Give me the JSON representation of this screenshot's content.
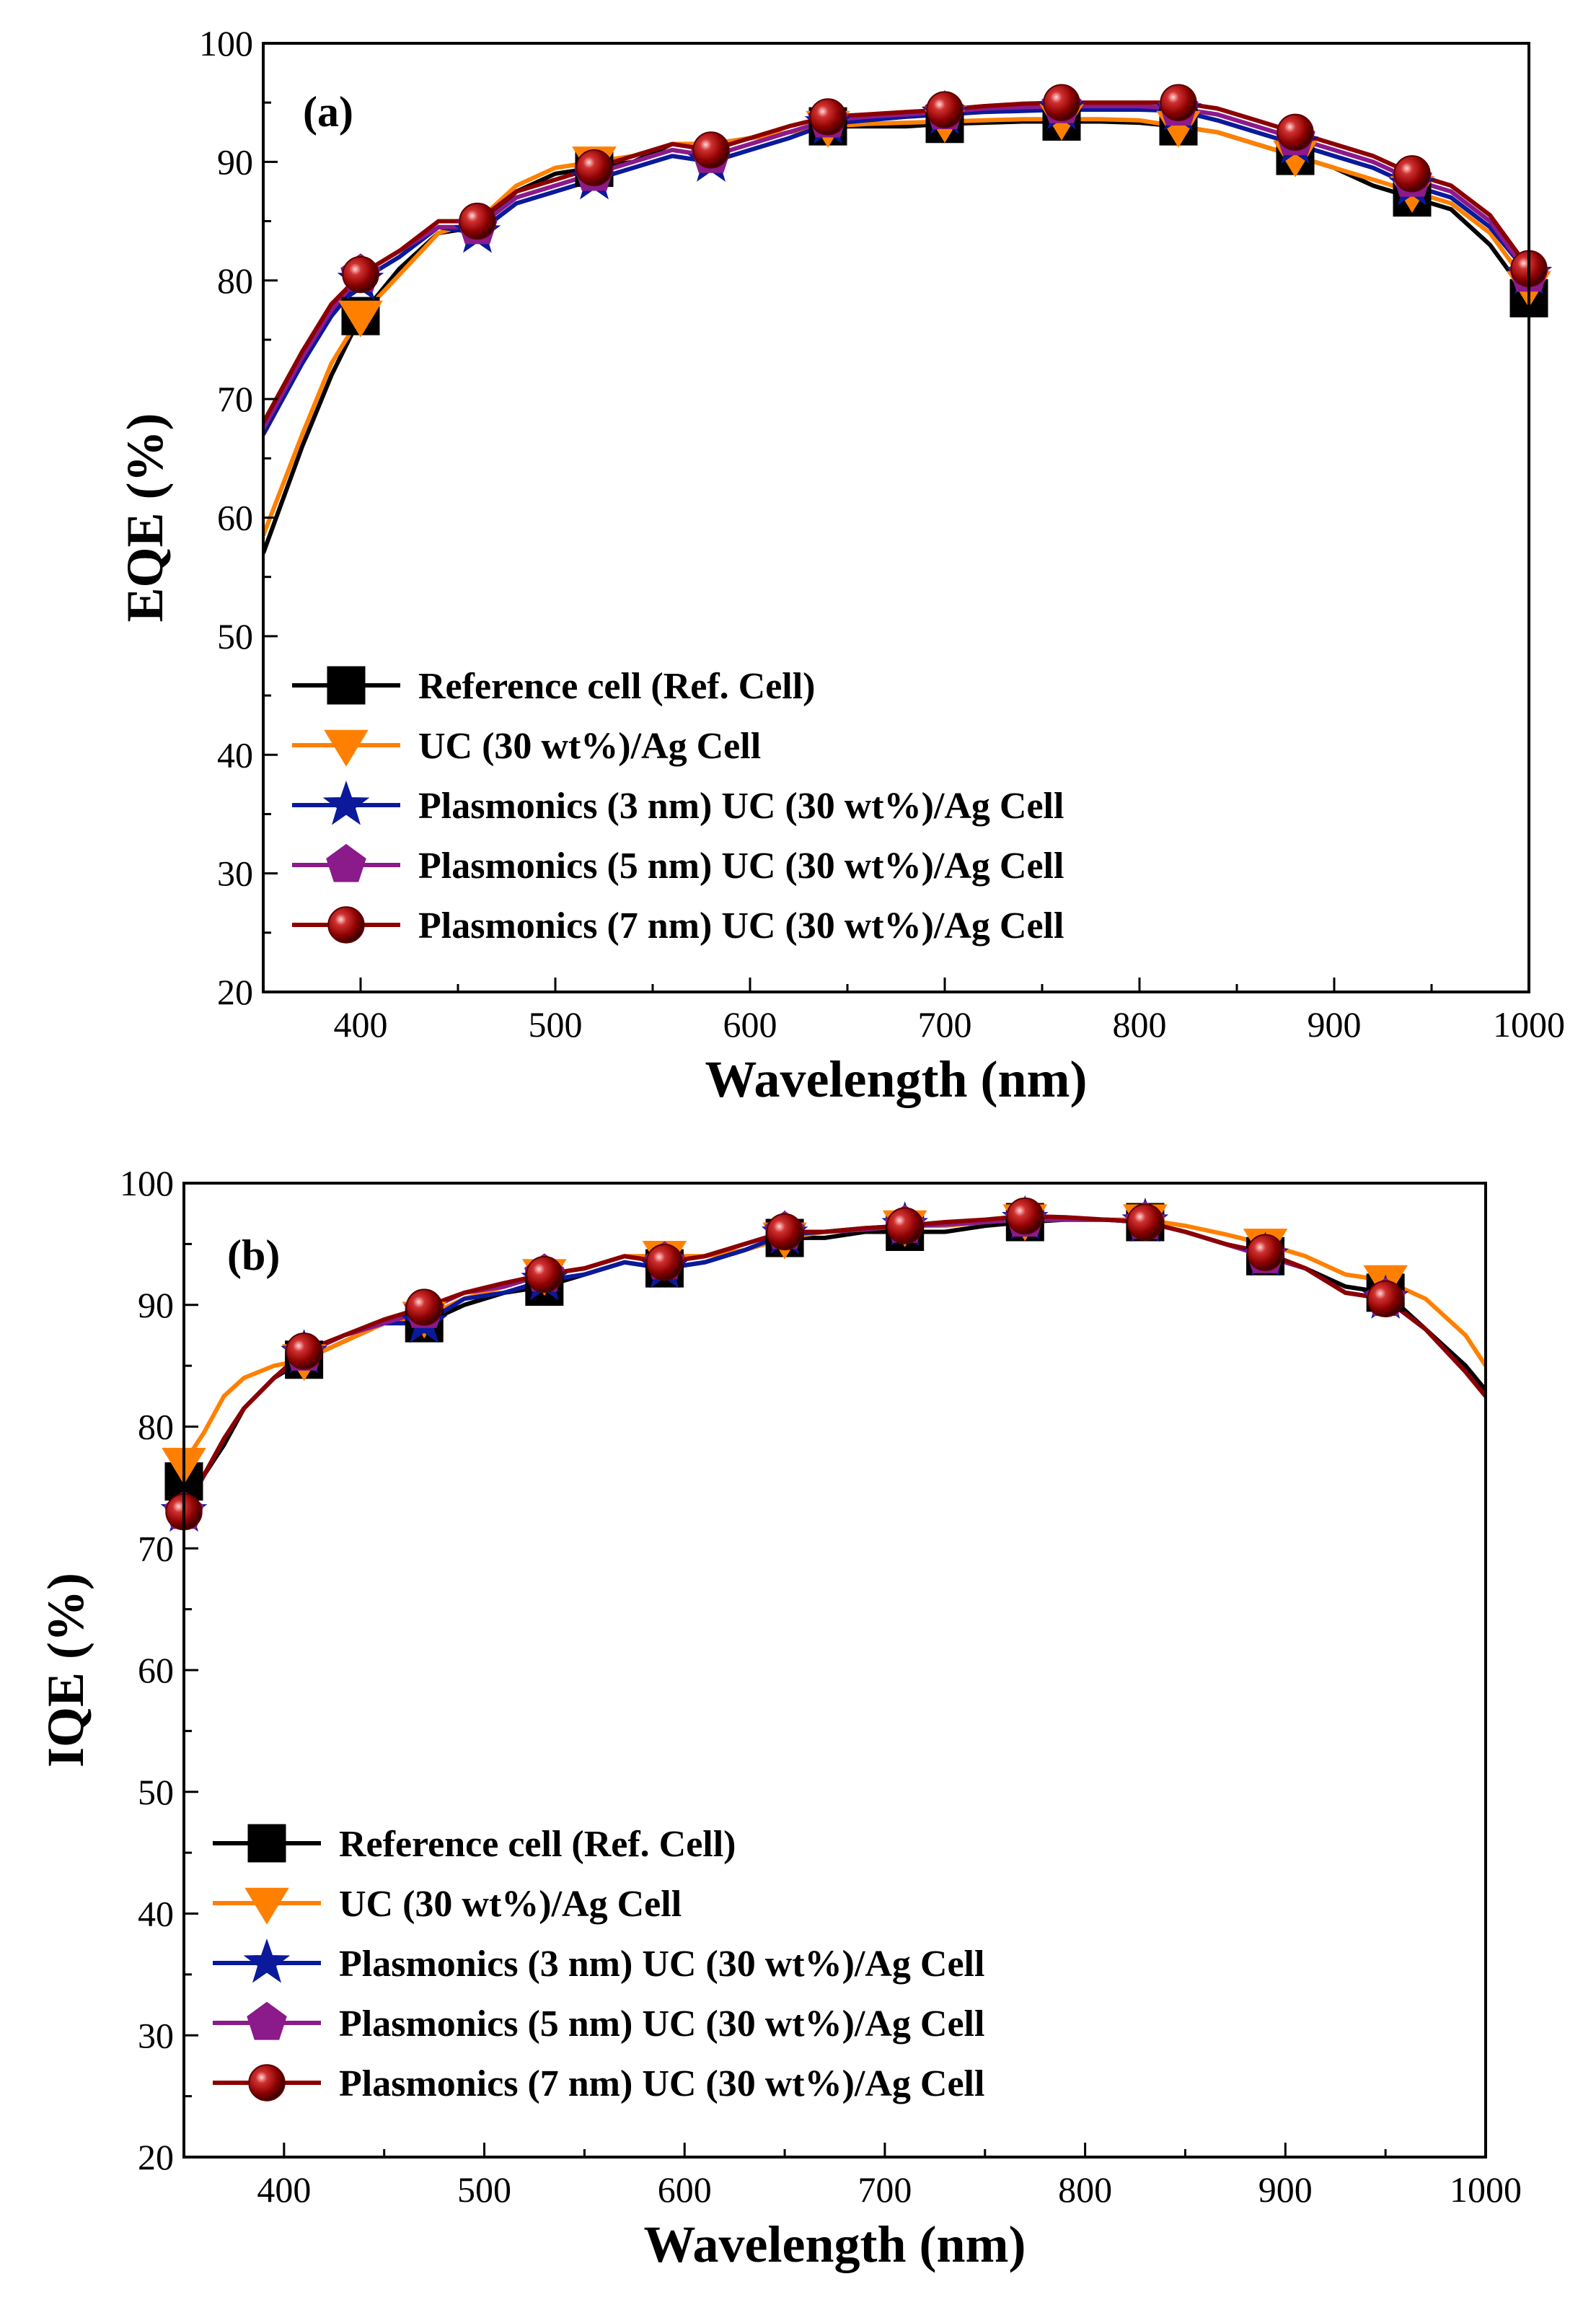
{
  "chart_data": [
    {
      "type": "line",
      "panel_label": "(a)",
      "xlabel": "Wavelength (nm)",
      "ylabel": "EQE (%)",
      "xlim": [
        350,
        1000
      ],
      "ylim": [
        20,
        100
      ],
      "xticks": [
        400,
        500,
        600,
        700,
        800,
        900,
        1000
      ],
      "yticks": [
        20,
        30,
        40,
        50,
        60,
        70,
        80,
        90,
        100
      ],
      "legend_position": "bottom-left",
      "series": [
        {
          "name": "Reference cell (Ref. Cell)",
          "color": "#000000",
          "marker": "square",
          "x": [
            350,
            370,
            385,
            400,
            420,
            440,
            460,
            480,
            500,
            520,
            540,
            560,
            580,
            600,
            620,
            640,
            660,
            680,
            700,
            720,
            740,
            760,
            780,
            800,
            820,
            840,
            860,
            880,
            900,
            920,
            940,
            960,
            980,
            1000
          ],
          "y": [
            57,
            66,
            72,
            77,
            81,
            84,
            84.5,
            87.5,
            89,
            89.5,
            90,
            91.5,
            91.5,
            92,
            92.5,
            93,
            93,
            93,
            93.2,
            93.3,
            93.4,
            93.4,
            93.4,
            93.3,
            93,
            92.5,
            91.5,
            90.5,
            89.5,
            88,
            87,
            86,
            83,
            78.5
          ],
          "marker_x": [
            400,
            520,
            640,
            700,
            760,
            820,
            880,
            940,
            1000
          ]
        },
        {
          "name": "UC (30 wt%)/Ag Cell",
          "color": "#ff8000",
          "marker": "triangle-down",
          "x": [
            350,
            370,
            385,
            400,
            420,
            440,
            460,
            480,
            500,
            520,
            540,
            560,
            580,
            600,
            620,
            640,
            660,
            680,
            700,
            720,
            740,
            760,
            780,
            800,
            820,
            840,
            860,
            880,
            900,
            920,
            940,
            960,
            980,
            1000
          ],
          "y": [
            58.5,
            67,
            73,
            77,
            80.5,
            84,
            85,
            88,
            89.5,
            90,
            90.5,
            91.5,
            91.5,
            92,
            92.5,
            93,
            93.2,
            93.3,
            93.4,
            93.5,
            93.6,
            93.6,
            93.6,
            93.5,
            93,
            92.5,
            91.5,
            90.5,
            89.5,
            88.5,
            87.5,
            86.5,
            84,
            79.5
          ],
          "marker_x": [
            400,
            520,
            640,
            700,
            760,
            820,
            880,
            940,
            1000
          ]
        },
        {
          "name": "Plasmonics (3 nm) UC (30 wt%)/Ag Cell",
          "color": "#0a1a9a",
          "marker": "star",
          "x": [
            350,
            370,
            385,
            400,
            420,
            440,
            460,
            480,
            500,
            520,
            540,
            560,
            580,
            600,
            620,
            640,
            660,
            680,
            700,
            720,
            740,
            760,
            780,
            800,
            820,
            840,
            860,
            880,
            900,
            920,
            940,
            960,
            980,
            1000
          ],
          "y": [
            67,
            73,
            77,
            80,
            82,
            84.5,
            84,
            86.5,
            87.5,
            88.5,
            89.5,
            90.5,
            90,
            91,
            92,
            93.2,
            93.5,
            93.8,
            94,
            94.2,
            94.3,
            94.4,
            94.4,
            94.4,
            94.3,
            93.5,
            92.5,
            91.5,
            90.5,
            89.5,
            88,
            87,
            84.5,
            80.5
          ],
          "marker_x": [
            400,
            460,
            520,
            580,
            640,
            700,
            760,
            820,
            880,
            940,
            1000
          ]
        },
        {
          "name": "Plasmonics (5 nm) UC (30 wt%)/Ag Cell",
          "color": "#8b1a8b",
          "marker": "pentagon",
          "x": [
            350,
            370,
            385,
            400,
            420,
            440,
            460,
            480,
            500,
            520,
            540,
            560,
            580,
            600,
            620,
            640,
            660,
            680,
            700,
            720,
            740,
            760,
            780,
            800,
            820,
            840,
            860,
            880,
            900,
            920,
            940,
            960,
            980,
            1000
          ],
          "y": [
            67.5,
            73.5,
            77.5,
            80.5,
            82.5,
            84.5,
            84.5,
            87,
            88,
            89,
            90,
            91,
            90.5,
            91.5,
            92.5,
            93.5,
            93.8,
            94,
            94.2,
            94.5,
            94.6,
            94.7,
            94.7,
            94.7,
            94.5,
            94,
            93,
            92,
            91,
            90,
            88.5,
            87.5,
            85,
            80.5
          ],
          "marker_x": [
            400,
            460,
            520,
            580,
            640,
            700,
            760,
            820,
            880,
            940,
            1000
          ]
        },
        {
          "name": "Plasmonics (7 nm) UC (30 wt%)/Ag Cell",
          "color": "#8b0000",
          "marker": "sphere",
          "x": [
            350,
            370,
            385,
            400,
            420,
            440,
            460,
            480,
            500,
            520,
            540,
            560,
            580,
            600,
            620,
            640,
            660,
            680,
            700,
            720,
            740,
            760,
            780,
            800,
            820,
            840,
            860,
            880,
            900,
            920,
            940,
            960,
            980,
            1000
          ],
          "y": [
            68,
            74,
            78,
            80.5,
            82.5,
            85,
            85,
            87.5,
            88.5,
            89.5,
            90.5,
            91.5,
            91,
            92,
            93,
            93.8,
            94,
            94.2,
            94.4,
            94.7,
            94.9,
            95,
            95,
            95,
            95,
            94.5,
            93.5,
            92.5,
            91.5,
            90.5,
            89,
            88,
            85.5,
            81
          ],
          "marker_x": [
            400,
            460,
            520,
            580,
            640,
            700,
            760,
            820,
            880,
            940,
            1000
          ]
        }
      ]
    },
    {
      "type": "line",
      "panel_label": "(b)",
      "xlabel": "Wavelength (nm)",
      "ylabel": "IQE (%)",
      "xlim": [
        350,
        1000
      ],
      "ylim": [
        20,
        100
      ],
      "xticks": [
        400,
        500,
        600,
        700,
        800,
        900,
        1000
      ],
      "yticks": [
        20,
        30,
        40,
        50,
        60,
        70,
        80,
        90,
        100
      ],
      "legend_position": "bottom-left",
      "series": [
        {
          "name": "Reference cell (Ref. Cell)",
          "color": "#000000",
          "marker": "square",
          "x": [
            350,
            360,
            370,
            380,
            395,
            410,
            430,
            450,
            470,
            490,
            510,
            530,
            550,
            570,
            590,
            610,
            630,
            650,
            670,
            690,
            710,
            730,
            750,
            770,
            790,
            810,
            830,
            850,
            870,
            890,
            910,
            930,
            950,
            970,
            990,
            1000
          ],
          "y": [
            75.5,
            76,
            78.5,
            81.5,
            84,
            85.5,
            87,
            88.5,
            88.5,
            90,
            91,
            91.5,
            92.5,
            93.5,
            93,
            93.5,
            94.5,
            95.5,
            95.5,
            96,
            96,
            96,
            96.5,
            96.8,
            97,
            97,
            96.8,
            96,
            95,
            94,
            93,
            91.5,
            91,
            88,
            85,
            83
          ],
          "marker_x": [
            350,
            410,
            470,
            530,
            590,
            650,
            710,
            770,
            830,
            890,
            950
          ]
        },
        {
          "name": "UC (30 wt%)/Ag Cell",
          "color": "#ff8000",
          "marker": "triangle-down",
          "x": [
            350,
            360,
            370,
            380,
            395,
            410,
            430,
            450,
            470,
            490,
            510,
            530,
            550,
            570,
            590,
            610,
            630,
            650,
            670,
            690,
            710,
            730,
            750,
            770,
            790,
            810,
            830,
            850,
            870,
            890,
            910,
            930,
            950,
            970,
            990,
            1000
          ],
          "y": [
            77,
            79.5,
            82.5,
            84,
            85,
            85.5,
            87,
            88.5,
            89,
            90.5,
            91.5,
            92.5,
            93,
            94,
            94,
            94,
            94.5,
            95.5,
            96,
            96.2,
            96.5,
            96.5,
            96.8,
            97,
            97,
            97,
            97,
            96.5,
            95.8,
            95,
            94,
            92.5,
            92,
            90.5,
            87.5,
            85
          ],
          "marker_x": [
            350,
            410,
            470,
            530,
            590,
            650,
            710,
            770,
            830,
            890,
            950
          ]
        },
        {
          "name": "Plasmonics (3 nm) UC (30 wt%)/Ag Cell",
          "color": "#0a1a9a",
          "marker": "star",
          "x": [
            350,
            360,
            370,
            380,
            395,
            410,
            430,
            450,
            470,
            490,
            510,
            530,
            550,
            570,
            590,
            610,
            630,
            650,
            670,
            690,
            710,
            730,
            750,
            770,
            790,
            810,
            830,
            850,
            870,
            890,
            910,
            930,
            950,
            970,
            990,
            1000
          ],
          "y": [
            73,
            76,
            79,
            81.5,
            84,
            86,
            87.5,
            88.5,
            88.5,
            90.5,
            91,
            92,
            92.5,
            93.5,
            93,
            93.5,
            94.5,
            95.8,
            96,
            96.3,
            96.5,
            96.6,
            96.8,
            97,
            97,
            97,
            96.8,
            96,
            95,
            94,
            93,
            91,
            90.5,
            88,
            84.5,
            82.5
          ],
          "marker_x": [
            350,
            410,
            470,
            530,
            590,
            650,
            710,
            770,
            830,
            890,
            950
          ]
        },
        {
          "name": "Plasmonics (5 nm) UC (30 wt%)/Ag Cell",
          "color": "#8b1a8b",
          "marker": "pentagon",
          "x": [
            350,
            360,
            370,
            380,
            395,
            410,
            430,
            450,
            470,
            490,
            510,
            530,
            550,
            570,
            590,
            610,
            630,
            650,
            670,
            690,
            710,
            730,
            750,
            770,
            790,
            810,
            830,
            850,
            870,
            890,
            910,
            930,
            950,
            970,
            990,
            1000
          ],
          "y": [
            73,
            76,
            79,
            81.5,
            84,
            86,
            87.5,
            88.5,
            89.5,
            91,
            91.5,
            92.5,
            93,
            94,
            93.5,
            94,
            95,
            96,
            96,
            96.2,
            96.5,
            96.6,
            96.8,
            97,
            97,
            97,
            96.8,
            96,
            95,
            94,
            93,
            91,
            90.5,
            88,
            84.5,
            82.5
          ],
          "marker_x": [
            350,
            410,
            470,
            530,
            590,
            650,
            710,
            770,
            830,
            890,
            950
          ]
        },
        {
          "name": "Plasmonics (7 nm) UC (30 wt%)/Ag Cell",
          "color": "#8b0000",
          "marker": "sphere",
          "x": [
            350,
            360,
            370,
            380,
            395,
            410,
            430,
            450,
            470,
            490,
            510,
            530,
            550,
            570,
            590,
            610,
            630,
            650,
            670,
            690,
            710,
            730,
            750,
            770,
            790,
            810,
            830,
            850,
            870,
            890,
            910,
            930,
            950,
            970,
            990,
            1000
          ],
          "y": [
            73,
            76,
            79,
            81.5,
            84,
            86.2,
            87.5,
            88.8,
            89.8,
            91,
            91.8,
            92.5,
            93,
            94,
            93.5,
            94,
            95,
            96,
            96,
            96.3,
            96.5,
            96.8,
            97,
            97.3,
            97.2,
            97,
            96.8,
            96,
            95,
            94.3,
            93,
            91,
            90.5,
            88,
            84.5,
            82.5
          ],
          "marker_x": [
            350,
            410,
            470,
            530,
            590,
            650,
            710,
            770,
            830,
            890,
            950
          ]
        }
      ]
    }
  ]
}
